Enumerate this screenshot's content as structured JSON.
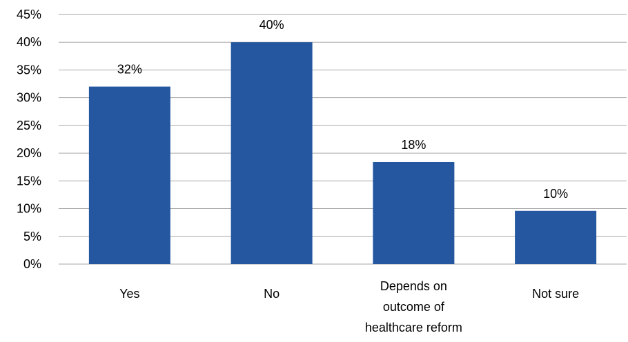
{
  "chart_data": {
    "type": "bar",
    "categories": [
      "Yes",
      "No",
      "Depends on outcome of healthcare reform",
      "Not sure"
    ],
    "category_lines": [
      [
        "Yes"
      ],
      [
        "No"
      ],
      [
        "Depends on",
        "outcome of",
        "healthcare reform"
      ],
      [
        "Not sure"
      ]
    ],
    "values": [
      32,
      40,
      18.4,
      9.6
    ],
    "data_labels": [
      "32%",
      "40%",
      "18%",
      "10%"
    ],
    "title": "",
    "xlabel": "",
    "ylabel": "",
    "ylim": [
      0,
      45
    ],
    "yticks": [
      "0%",
      "5%",
      "10%",
      "15%",
      "20%",
      "25%",
      "30%",
      "35%",
      "40%",
      "45%"
    ],
    "grid": true,
    "legend": "none",
    "colors": {
      "bar": "#2457a0",
      "grid": "#a6a6a6"
    }
  }
}
